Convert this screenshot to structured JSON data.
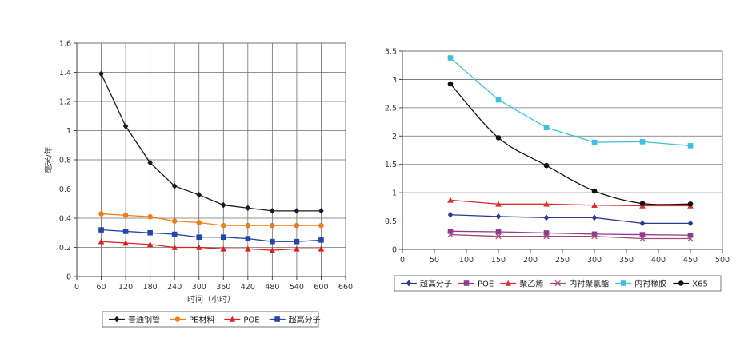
{
  "chart_data": [
    {
      "type": "line",
      "xlabel": "时间（小时）",
      "ylabel": "毫米/年",
      "xlim": [
        0,
        660
      ],
      "ylim": [
        0,
        1.6
      ],
      "xticks": [
        0,
        60,
        120,
        180,
        240,
        300,
        360,
        420,
        480,
        540,
        600,
        660
      ],
      "yticks": [
        0,
        0.2,
        0.4,
        0.6,
        0.8,
        1,
        1.2,
        1.4,
        1.6
      ],
      "xtick_labels": [
        "0",
        "60",
        "120",
        "180",
        "240",
        "300",
        "360",
        "420",
        "480",
        "540",
        "600",
        "660"
      ],
      "ytick_labels": [
        "0",
        "0.2",
        "0.4",
        "0.6",
        "0.8",
        "1",
        "1.2",
        "1.4",
        "1.6"
      ],
      "grid": "vertical and horizontal",
      "legend_position": "bottom",
      "x": [
        60,
        120,
        180,
        240,
        300,
        360,
        420,
        480,
        540,
        600
      ],
      "series": [
        {
          "name": "普通钢管",
          "color": "#1a1a1a",
          "marker": "diamond",
          "values": [
            1.39,
            1.03,
            0.78,
            0.62,
            0.56,
            0.49,
            0.47,
            0.45,
            0.45,
            0.45
          ]
        },
        {
          "name": "PE材料",
          "color": "#f07d1c",
          "marker": "circle",
          "values": [
            0.43,
            0.42,
            0.41,
            0.38,
            0.37,
            0.35,
            0.35,
            0.35,
            0.35,
            0.35
          ]
        },
        {
          "name": "POE",
          "color": "#d91f1f",
          "marker": "triangle",
          "values": [
            0.24,
            0.23,
            0.22,
            0.2,
            0.2,
            0.19,
            0.19,
            0.18,
            0.19,
            0.19
          ]
        },
        {
          "name": "超高分子",
          "color": "#2346a8",
          "marker": "square",
          "values": [
            0.32,
            0.31,
            0.3,
            0.29,
            0.27,
            0.27,
            0.26,
            0.24,
            0.24,
            0.25
          ]
        }
      ]
    },
    {
      "type": "line",
      "xlim": [
        0,
        500
      ],
      "ylim": [
        0,
        3.5
      ],
      "xticks": [
        0,
        50,
        100,
        150,
        200,
        250,
        300,
        350,
        400,
        450,
        500
      ],
      "yticks": [
        0,
        0.5,
        1,
        1.5,
        2,
        2.5,
        3,
        3.5
      ],
      "xtick_labels": [
        "0",
        "50",
        "100",
        "150",
        "200",
        "250",
        "300",
        "350",
        "400",
        "450",
        "500"
      ],
      "ytick_labels": [
        "0",
        "0.5",
        "1",
        "1.5",
        "2",
        "2.5",
        "3",
        "3.5"
      ],
      "grid": "horizontal",
      "legend_position": "bottom",
      "x": [
        75,
        150,
        225,
        300,
        375,
        450
      ],
      "series": [
        {
          "name": "超高分子",
          "color": "#2a3b8f",
          "marker": "diamond",
          "values": [
            0.61,
            0.58,
            0.56,
            0.56,
            0.46,
            0.46
          ]
        },
        {
          "name": "POE",
          "color": "#8e3b8e",
          "marker": "square",
          "values": [
            0.32,
            0.31,
            0.29,
            0.27,
            0.26,
            0.25
          ]
        },
        {
          "name": "聚乙烯",
          "color": "#d93030",
          "marker": "triangle",
          "values": [
            0.87,
            0.8,
            0.8,
            0.78,
            0.77,
            0.77
          ]
        },
        {
          "name": "内衬聚氯酯",
          "color": "#a4487a",
          "marker": "x",
          "values": [
            0.26,
            0.23,
            0.23,
            0.23,
            0.19,
            0.19
          ]
        },
        {
          "name": "内衬橡胶",
          "color": "#3fbfdd",
          "marker": "square",
          "values": [
            3.38,
            2.64,
            2.15,
            1.89,
            1.9,
            1.83
          ]
        },
        {
          "name": "X65",
          "color": "#111111",
          "marker": "circle",
          "smooth": true,
          "values": [
            2.92,
            1.97,
            1.48,
            1.03,
            0.81,
            0.8
          ]
        }
      ]
    }
  ]
}
